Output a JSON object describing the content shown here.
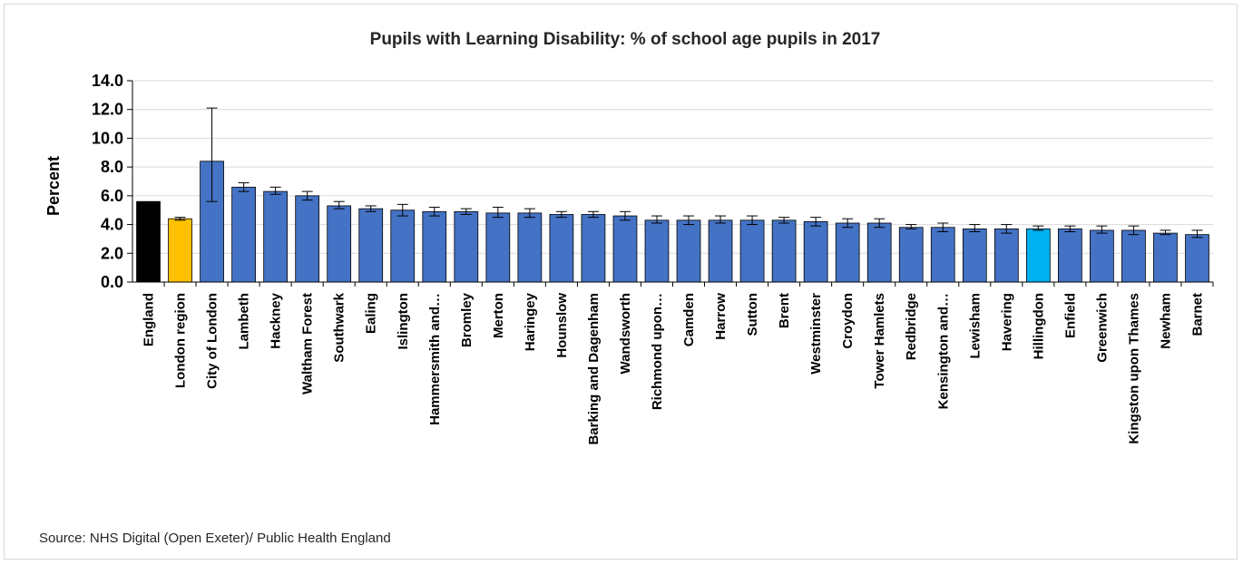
{
  "chart_data": {
    "type": "bar",
    "title": "Pupils with Learning Disability: % of school age pupils in 2017",
    "ylabel": "Percent",
    "xlabel": "",
    "ylim": [
      0,
      14
    ],
    "yticks": [
      "0.0",
      "2.0",
      "4.0",
      "6.0",
      "8.0",
      "10.0",
      "12.0",
      "14.0"
    ],
    "grid": "horizontal",
    "error_bars": true,
    "colors": {
      "default": "#4472C4",
      "England": "#000000",
      "London region": "#FFC000",
      "Hillingdon": "#00B0F0",
      "gridline": "#d9d9d9",
      "axis": "#000000"
    },
    "categories": [
      "England",
      "London region",
      "City of London",
      "Lambeth",
      "Hackney",
      "Waltham Forest",
      "Southwark",
      "Ealing",
      "Islington",
      "Hammersmith and…",
      "Bromley",
      "Merton",
      "Haringey",
      "Hounslow",
      "Barking and Dagenham",
      "Wandsworth",
      "Richmond upon…",
      "Camden",
      "Harrow",
      "Sutton",
      "Brent",
      "Westminster",
      "Croydon",
      "Tower Hamlets",
      "Redbridge",
      "Kensington and…",
      "Lewisham",
      "Havering",
      "Hillingdon",
      "Enfield",
      "Greenwich",
      "Kingston upon Thames",
      "Newham",
      "Barnet"
    ],
    "values": [
      5.6,
      4.4,
      8.4,
      6.6,
      6.3,
      6.0,
      5.3,
      5.1,
      5.0,
      4.9,
      4.9,
      4.8,
      4.8,
      4.7,
      4.7,
      4.6,
      4.3,
      4.3,
      4.3,
      4.3,
      4.3,
      4.2,
      4.1,
      4.1,
      3.8,
      3.8,
      3.7,
      3.7,
      3.7,
      3.7,
      3.6,
      3.6,
      3.4,
      3.3
    ],
    "error_low": [
      null,
      4.3,
      5.6,
      6.3,
      6.1,
      5.7,
      5.1,
      4.9,
      4.6,
      4.6,
      4.7,
      4.5,
      4.5,
      4.5,
      4.5,
      4.3,
      4.1,
      4.0,
      4.1,
      4.0,
      4.1,
      3.9,
      3.8,
      3.8,
      3.7,
      3.5,
      3.5,
      3.4,
      3.6,
      3.5,
      3.4,
      3.3,
      3.3,
      3.1
    ],
    "error_high": [
      null,
      4.5,
      12.1,
      6.9,
      6.6,
      6.3,
      5.6,
      5.3,
      5.4,
      5.2,
      5.1,
      5.2,
      5.1,
      4.9,
      4.9,
      4.9,
      4.6,
      4.6,
      4.6,
      4.6,
      4.5,
      4.5,
      4.4,
      4.4,
      4.0,
      4.1,
      4.0,
      4.0,
      3.9,
      3.9,
      3.9,
      3.9,
      3.6,
      3.6
    ]
  },
  "footer": {
    "source": "Source: NHS Digital (Open Exeter)/  Public Health England"
  }
}
